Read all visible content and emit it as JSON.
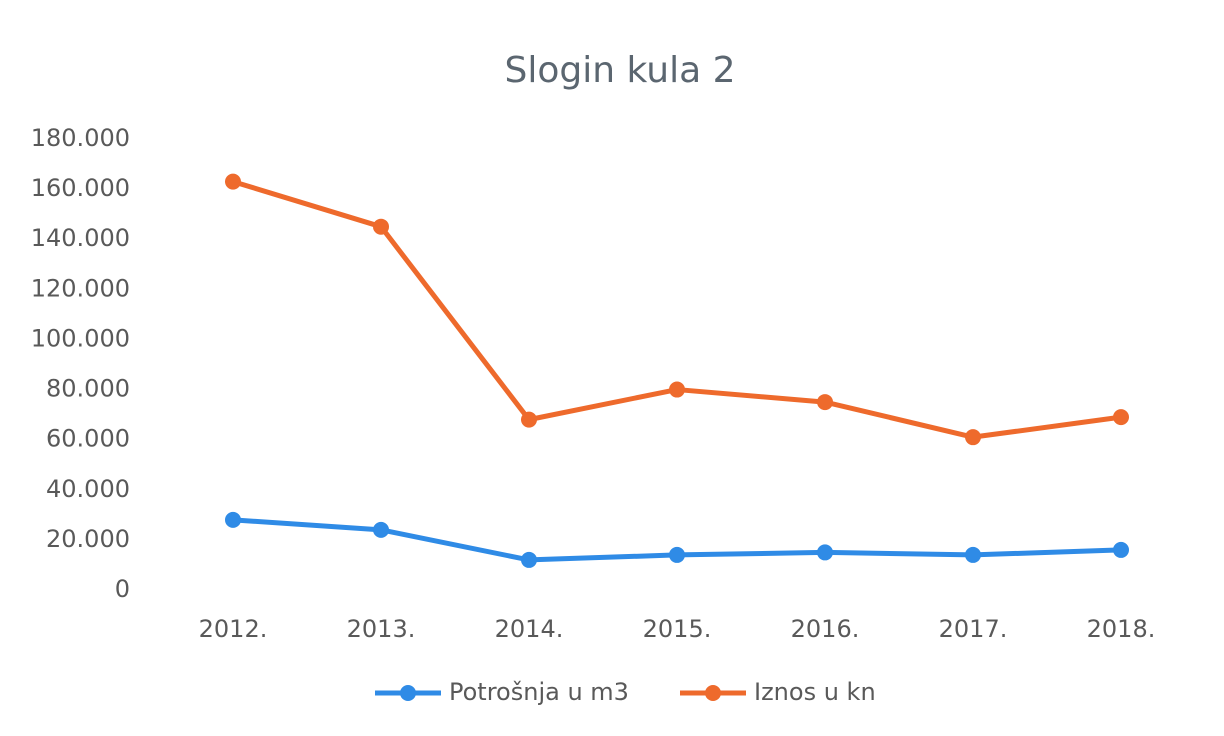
{
  "chart_data": {
    "type": "line",
    "title": "Slogin kula 2",
    "categories": [
      "2012.",
      "2013.",
      "2014.",
      "2015.",
      "2016.",
      "2017.",
      "2018."
    ],
    "series": [
      {
        "name": "Potrošnja u m3",
        "color": "#2f8be6",
        "values": [
          28000,
          24000,
          12000,
          14000,
          15000,
          14000,
          16000
        ]
      },
      {
        "name": "Iznos u kn",
        "color": "#ee6a2c",
        "values": [
          163000,
          145000,
          68000,
          80000,
          75000,
          61000,
          69000
        ]
      }
    ],
    "ylim": [
      0,
      180000
    ],
    "yticks": [
      0,
      {
        "value": 20000,
        "label": "20.000"
      },
      {
        "value": 40000,
        "label": "40.000"
      },
      {
        "value": 60000,
        "label": "60.000"
      },
      {
        "value": 80000,
        "label": "80.000"
      },
      {
        "value": 100000,
        "label": "100.000"
      },
      {
        "value": 120000,
        "label": "120.000"
      },
      {
        "value": 140000,
        "label": "140.000"
      },
      {
        "value": 160000,
        "label": "160.000"
      },
      {
        "value": 180000,
        "label": "180.000"
      }
    ],
    "grid": false,
    "legend": "bottom"
  }
}
